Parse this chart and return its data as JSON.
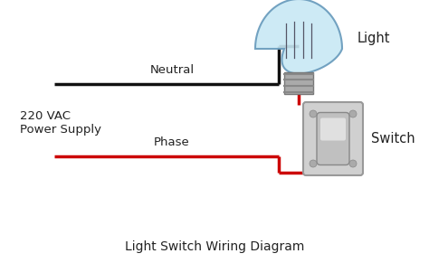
{
  "title": "Light Switch Wiring Diagram",
  "title_fontsize": 10,
  "background_color": "#ffffff",
  "label_220vac": "220 VAC",
  "label_power": "Power Supply",
  "label_neutral": "Neutral",
  "label_phase": "Phase",
  "label_light": "Light",
  "label_switch": "Switch",
  "neutral_wire_color": "#111111",
  "phase_wire_color": "#cc0000",
  "wire_linewidth": 2.5
}
